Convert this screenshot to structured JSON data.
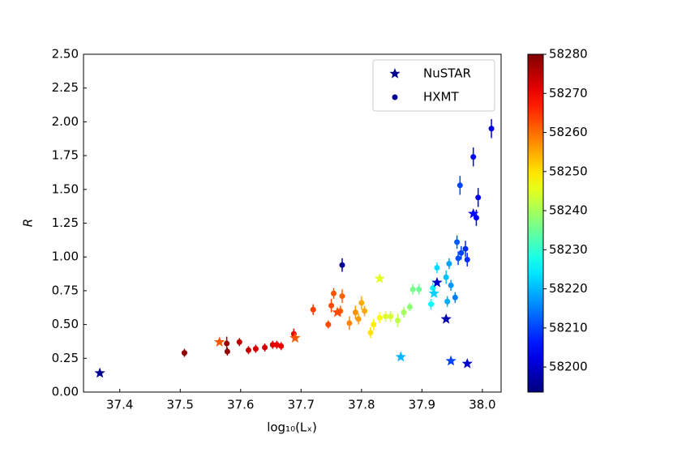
{
  "chart_data": {
    "type": "scatter",
    "x_label": "log₁₀(Lₓ)",
    "y_label": "R",
    "xlim": [
      37.34,
      38.031
    ],
    "ylim": [
      0,
      2.5
    ],
    "xticks": [
      37.4,
      37.5,
      37.6,
      37.7,
      37.8,
      37.9,
      {
        "value": 38.0,
        "label": "38.0"
      }
    ],
    "yticks": [
      {
        "value": 0,
        "label": "0.00"
      },
      {
        "value": 0.25,
        "label": "0.25"
      },
      {
        "value": 0.5,
        "label": "0.50"
      },
      {
        "value": 0.75,
        "label": "0.75"
      },
      {
        "value": 1.0,
        "label": "1.00"
      },
      {
        "value": 1.25,
        "label": "1.25"
      },
      {
        "value": 1.5,
        "label": "1.50"
      },
      {
        "value": 1.75,
        "label": "1.75"
      },
      {
        "value": 2.0,
        "label": "2.00"
      },
      {
        "value": 2.25,
        "label": "2.25"
      },
      {
        "value": 2.5,
        "label": "2.50"
      }
    ],
    "colormap": "jet",
    "clim": [
      58193.6,
      58280
    ],
    "cticks": [
      58200,
      58210,
      58220,
      58230,
      58240,
      58250,
      58260,
      58270,
      58280
    ],
    "legend": "upper right",
    "series": [
      {
        "name": "NuSTAR",
        "marker": "star",
        "color": "#00008b",
        "x": [
          37.367,
          37.565,
          37.69,
          37.76,
          37.83,
          37.865,
          37.92,
          37.925,
          37.94,
          37.948,
          37.975,
          37.985
        ],
        "values": [
          0.14,
          0.37,
          0.4,
          0.59,
          0.84,
          0.26,
          0.73,
          0.81,
          0.54,
          0.23,
          0.21,
          1.32
        ],
        "c": [
          58195,
          58262,
          58262,
          58263,
          58245,
          58220,
          58222,
          58200,
          58198,
          58210,
          58200,
          58205
        ]
      },
      {
        "name": "HXMT",
        "marker": "circle",
        "color": "#00008b",
        "x": [
          37.507,
          37.577,
          37.578,
          37.598,
          37.613,
          37.625,
          37.64,
          37.653,
          37.66,
          37.667,
          37.688,
          37.768,
          37.72,
          37.745,
          37.75,
          37.754,
          37.765,
          37.768,
          37.78,
          37.79,
          37.795,
          37.8,
          37.805,
          37.815,
          37.82,
          37.83,
          37.84,
          37.848,
          37.86,
          37.87,
          37.88,
          37.885,
          37.895,
          37.915,
          37.918,
          37.925,
          37.94,
          37.942,
          37.945,
          37.948,
          37.955,
          37.958,
          37.96,
          37.963,
          37.965,
          37.972,
          37.975,
          37.985,
          37.99,
          37.993,
          38.015
        ],
        "values": [
          0.29,
          0.36,
          0.3,
          0.37,
          0.31,
          0.32,
          0.33,
          0.35,
          0.35,
          0.34,
          0.43,
          0.94,
          0.61,
          0.5,
          0.64,
          0.73,
          0.6,
          0.71,
          0.51,
          0.59,
          0.54,
          0.66,
          0.6,
          0.44,
          0.5,
          0.55,
          0.56,
          0.56,
          0.53,
          0.59,
          0.63,
          0.76,
          0.76,
          0.65,
          0.77,
          0.92,
          0.85,
          0.67,
          0.95,
          0.79,
          0.7,
          1.11,
          0.99,
          1.53,
          1.03,
          1.06,
          0.98,
          1.74,
          1.29,
          1.44,
          1.95
        ],
        "errors": [
          0.03,
          0.05,
          0.03,
          0.03,
          0.03,
          0.03,
          0.03,
          0.03,
          0.03,
          0.03,
          0.04,
          0.05,
          0.04,
          0.03,
          0.05,
          0.04,
          0.04,
          0.05,
          0.05,
          0.05,
          0.04,
          0.05,
          0.04,
          0.04,
          0.04,
          0.04,
          0.04,
          0.04,
          0.05,
          0.04,
          0.03,
          0.04,
          0.04,
          0.04,
          0.04,
          0.04,
          0.05,
          0.04,
          0.04,
          0.04,
          0.04,
          0.05,
          0.05,
          0.07,
          0.05,
          0.06,
          0.05,
          0.07,
          0.06,
          0.07,
          0.07
        ],
        "c": [
          58279,
          58278,
          58278,
          58275,
          58274,
          58273,
          58273,
          58272,
          58271,
          58271,
          58270,
          58195,
          58264,
          58263,
          58263,
          58262,
          58261,
          58261,
          58258,
          58257,
          58256,
          58255,
          58255,
          58250,
          58249,
          58247,
          58245,
          58244,
          58242,
          58240,
          58238,
          58236,
          58235,
          58226,
          58225,
          58223,
          58221,
          58219,
          58218,
          58217,
          58215,
          58212,
          58211,
          58210,
          58210,
          58208,
          58208,
          58205,
          58204,
          58203,
          58202
        ]
      }
    ]
  }
}
